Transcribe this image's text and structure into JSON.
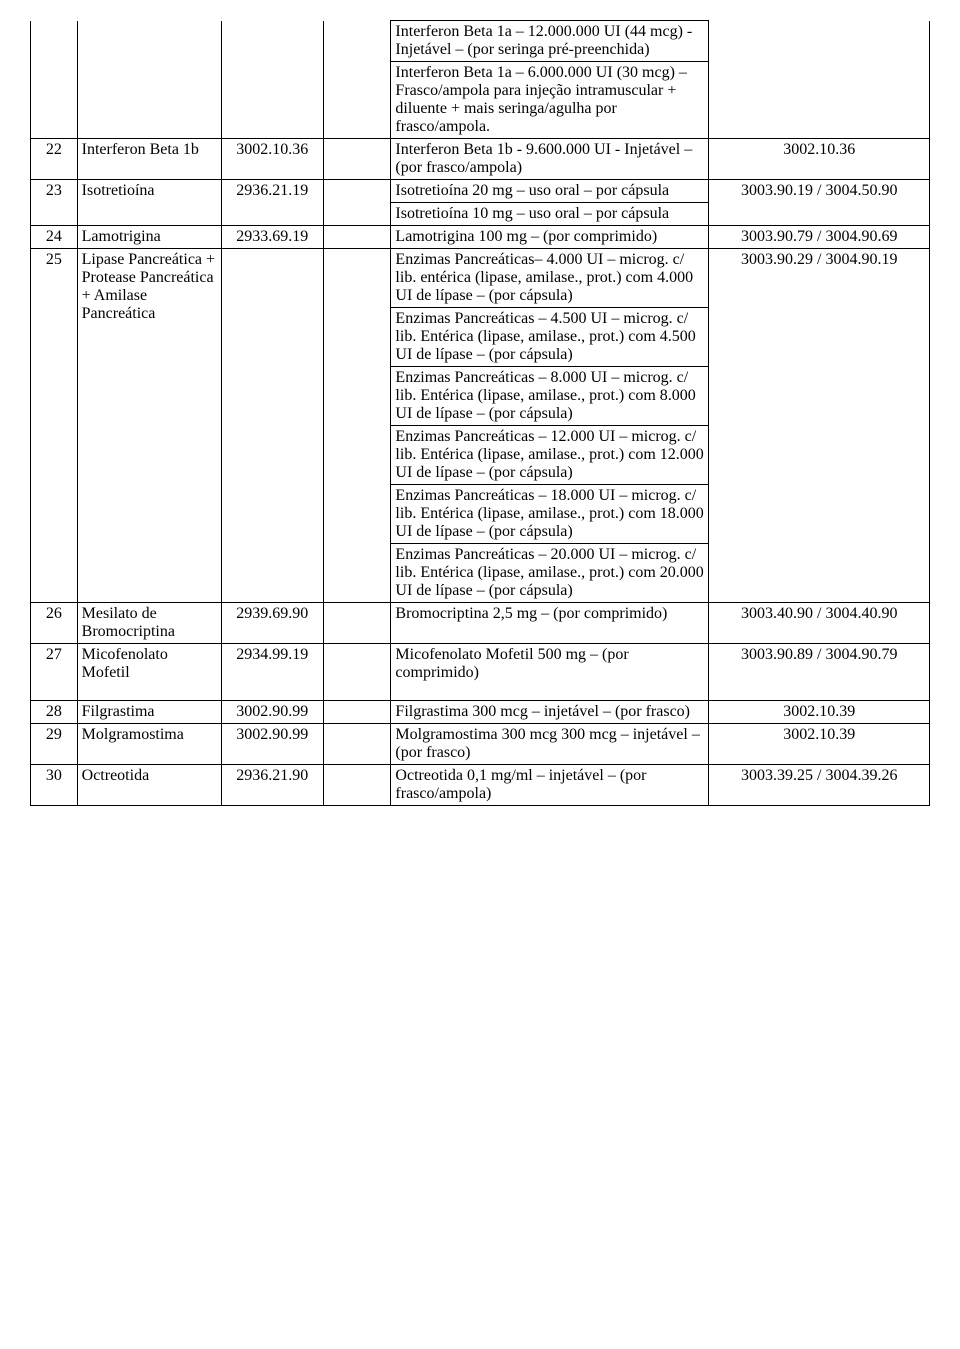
{
  "rows": [
    {
      "num": "",
      "name": "",
      "code1": "",
      "subcode": "",
      "subcodeTop": false,
      "descs": [
        "Interferon Beta 1a – 12.000.000 UI (44 mcg) - Injetável – (por seringa pré-preenchida)",
        "Interferon Beta 1a – 6.000.000 UI (30 mcg) – Frasco/ampola para injeção intramuscular + diluente + mais seringa/agulha por frasco/ampola."
      ],
      "code2": "",
      "continuation": true
    },
    {
      "num": "22",
      "name": "Interferon Beta 1b",
      "code1": "3002.10.36",
      "subcode": "",
      "descs": [
        "Interferon Beta 1b - 9.600.000 UI - Injetável – (por frasco/ampola)"
      ],
      "code2": "3002.10.36"
    },
    {
      "num": "23",
      "name": "Isotretioína",
      "code1": "2936.21.19",
      "subcode": "",
      "subcodeTop": true,
      "descs": [
        "Isotretioína 20 mg – uso oral – por cápsula",
        "Isotretioína 10 mg – uso oral – por cápsula"
      ],
      "code2": "3003.90.19 / 3004.50.90"
    },
    {
      "num": "24",
      "name": "Lamotrigina",
      "code1": "2933.69.19",
      "subcode": "",
      "descs": [
        "Lamotrigina 100 mg – (por comprimido)"
      ],
      "code2": "3003.90.79 / 3004.90.69"
    },
    {
      "num": "25",
      "name": "Lipase Pancreática + Protease Pancreática + Amilase Pancreática",
      "code1": "",
      "subcode": "",
      "subcodeTop": true,
      "descs": [
        "Enzimas Pancreáticas– 4.000 UI – microg. c/ lib.  entérica (lipase, amilase., prot.) com 4.000 UI de lípase – (por cápsula)",
        "Enzimas Pancreáticas – 4.500 UI – microg. c/ lib.  Entérica (lipase, amilase., prot.) com 4.500 UI de lípase – (por cápsula)",
        "Enzimas Pancreáticas – 8.000 UI – microg. c/ lib.  Entérica (lipase, amilase., prot.) com 8.000 UI de lípase – (por cápsula)",
        "Enzimas Pancreáticas – 12.000 UI – microg. c/ lib.  Entérica (lipase, amilase., prot.) com 12.000 UI de lípase – (por cápsula)",
        "Enzimas Pancreáticas – 18.000 UI – microg. c/ lib.  Entérica (lipase, amilase., prot.) com 18.000 UI de lípase – (por cápsula)",
        "Enzimas Pancreáticas – 20.000 UI – microg. c/ lib.  Entérica (lipase, amilase., prot.) com 20.000 UI de lípase – (por cápsula)"
      ],
      "code2": "3003.90.29 / 3004.90.19"
    },
    {
      "num": "26",
      "name": "Mesilato de Bromocriptina",
      "code1": "2939.69.90",
      "subcode": "",
      "descs": [
        "Bromocriptina 2,5 mg – (por comprimido)"
      ],
      "code2": "3003.40.90 / 3004.40.90"
    },
    {
      "num": "27",
      "name": "Micofenolato Mofetil",
      "code1": "2934.99.19",
      "subcode": "",
      "descs": [
        "Micofenolato Mofetil 500 mg – (por comprimido)"
      ],
      "code2": "3003.90.89 / 3004.90.79",
      "extraPad": true
    },
    {
      "num": "28",
      "name": "Filgrastima",
      "code1": "3002.90.99",
      "subcode": "",
      "descs": [
        "Filgrastima 300 mcg –  injetável – (por frasco)"
      ],
      "code2": "3002.10.39"
    },
    {
      "num": "29",
      "name": "Molgramostima",
      "code1": "3002.90.99",
      "subcode": "",
      "descs": [
        "Molgramostima 300 mcg 300 mcg – injetável – (por frasco)"
      ],
      "code2": "3002.10.39"
    },
    {
      "num": "30",
      "name": "Octreotida",
      "code1": "2936.21.90",
      "subcode": "",
      "descs": [
        "Octreotida 0,1 mg/ml – injetável – (por frasco/ampola)"
      ],
      "code2": "3003.39.25 / 3004.39.26"
    }
  ]
}
